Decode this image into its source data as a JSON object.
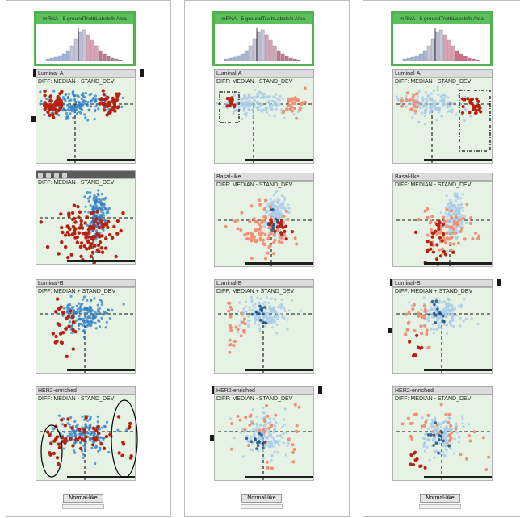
{
  "colors": {
    "green_border": "#4fb34f",
    "plot_bg": "#e6f2e3",
    "blue": "#2f7fc8",
    "light_blue": "#a8cbe8",
    "dark_red": "#b8200f",
    "salmon": "#f29075",
    "dark_blue": "#1c4f86"
  },
  "columns": [
    {
      "histogram_title": "mRNA - 5 groundTruthLabels/k Alea",
      "panels": [
        {
          "title": "Luminal-A",
          "subtitle": "DIFF: MEDIAN - STAND_DEV"
        },
        {
          "title": "",
          "subtitle": "DIFF: MEDIAN - STAND_DEV"
        },
        {
          "title": "Luminal-B",
          "subtitle": "DIFF: MEDIAN + STAND_DEV"
        },
        {
          "title": "HER2-enriched",
          "subtitle": "DIFF: MEDIAN - STAND_DEV"
        }
      ],
      "footer": "Normal-like"
    },
    {
      "histogram_title": "mRNA - 5 groundTruthLabels/k Alea",
      "panels": [
        {
          "title": "Luminal-A",
          "subtitle": "DIFF: MEDIAN - STAND_DEV"
        },
        {
          "title": "Basal-like",
          "subtitle": "DIFF: MEDIAN - STAND_DEV"
        },
        {
          "title": "Luminal-B",
          "subtitle": "DIFF: MEDIAN + STAND_DEV"
        },
        {
          "title": "HER2-enriched",
          "subtitle": "DIFF: MEDIAN - STAND_DEV"
        }
      ],
      "footer": "Normal-like"
    },
    {
      "histogram_title": "mRNA - 5 groundTruthLabels/k Alea",
      "panels": [
        {
          "title": "Luminal-A",
          "subtitle": "DIFF: MEDIAN - STAND_DEV"
        },
        {
          "title": "Basal-like",
          "subtitle": "DIFF: MEDIAN - STAND_DEV"
        },
        {
          "title": "Luminal-B",
          "subtitle": "DIFF: MEDIAN + STAND_DEV"
        },
        {
          "title": "HER2-enriched",
          "subtitle": "DIFF: MEDIAN - STAND_DEV"
        }
      ],
      "footer": "Normal-like"
    }
  ]
}
